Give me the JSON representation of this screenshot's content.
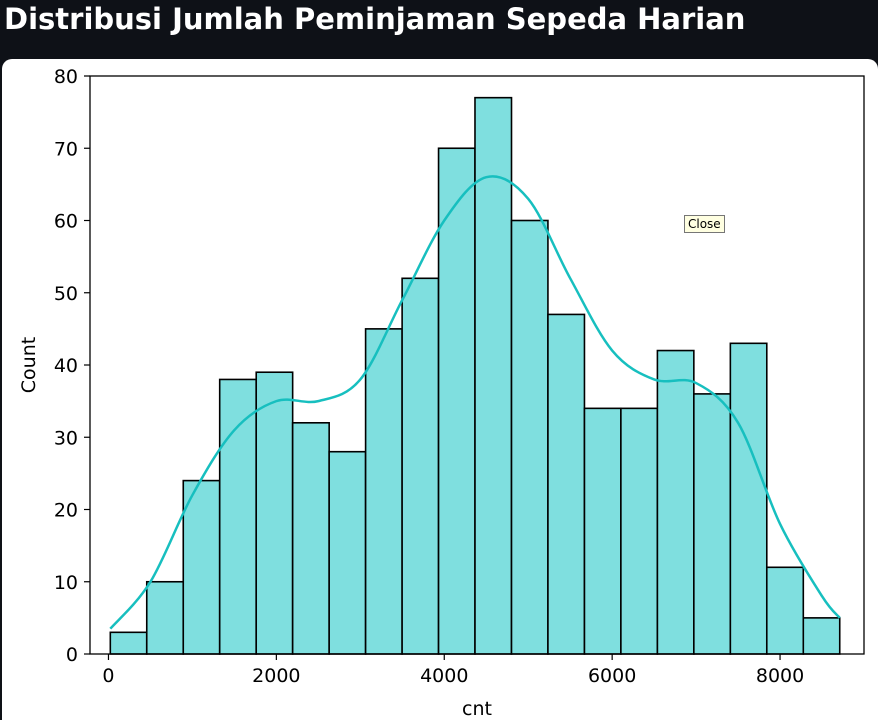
{
  "page": {
    "title": "Distribusi Jumlah Peminjaman Sepeda Harian"
  },
  "tooltip": {
    "text": "Close"
  },
  "chart_data": {
    "type": "histogram",
    "xlabel": "cnt",
    "ylabel": "Count",
    "xlim": [
      -220,
      9000
    ],
    "ylim": [
      0,
      80
    ],
    "x_ticks": [
      0,
      2000,
      4000,
      6000,
      8000
    ],
    "y_ticks": [
      0,
      10,
      20,
      30,
      40,
      50,
      60,
      70,
      80
    ],
    "bin_edges": [
      22,
      456,
      891,
      1325,
      1760,
      2194,
      2629,
      3063,
      3498,
      3932,
      4366,
      4801,
      5235,
      5670,
      6104,
      6539,
      6973,
      7408,
      7842,
      8277,
      8711
    ],
    "counts": [
      3,
      10,
      24,
      38,
      39,
      32,
      28,
      45,
      52,
      70,
      77,
      60,
      47,
      34,
      34,
      42,
      36,
      43,
      12,
      5
    ],
    "kde": {
      "x": [
        22,
        500,
        1000,
        1500,
        2000,
        2500,
        3000,
        3500,
        4000,
        4500,
        5000,
        5500,
        6000,
        6500,
        7000,
        7500,
        8000,
        8500,
        8711
      ],
      "y": [
        3.5,
        10,
        22,
        31,
        35,
        35,
        38,
        49,
        60,
        66,
        63,
        52,
        42,
        38,
        37.5,
        32,
        18,
        8,
        5
      ]
    },
    "grid": false,
    "bar_color": "#7fdfdf",
    "bar_edge_color": "#000000",
    "kde_color": "#17bfbf"
  }
}
